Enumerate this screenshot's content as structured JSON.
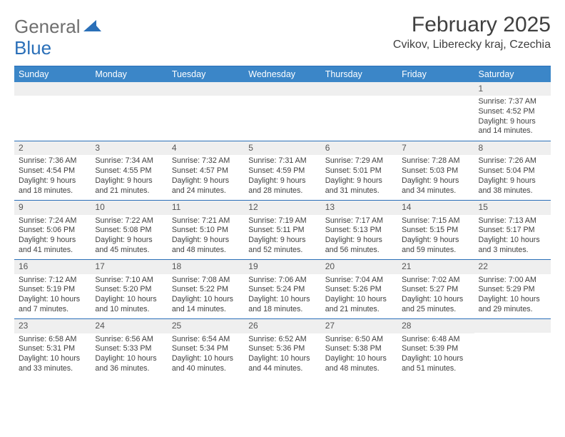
{
  "brand": {
    "part1": "General",
    "part2": "Blue"
  },
  "title": "February 2025",
  "location": "Cvikov, Liberecky kraj, Czechia",
  "colors": {
    "header_bg": "#3b86c8",
    "rule": "#2a6fb8",
    "daynum_bg": "#efefef",
    "text": "#404040"
  },
  "weekdays": [
    "Sunday",
    "Monday",
    "Tuesday",
    "Wednesday",
    "Thursday",
    "Friday",
    "Saturday"
  ],
  "weeks": [
    [
      null,
      null,
      null,
      null,
      null,
      null,
      {
        "n": "1",
        "sr": "Sunrise: 7:37 AM",
        "ss": "Sunset: 4:52 PM",
        "dl": "Daylight: 9 hours and 14 minutes."
      }
    ],
    [
      {
        "n": "2",
        "sr": "Sunrise: 7:36 AM",
        "ss": "Sunset: 4:54 PM",
        "dl": "Daylight: 9 hours and 18 minutes."
      },
      {
        "n": "3",
        "sr": "Sunrise: 7:34 AM",
        "ss": "Sunset: 4:55 PM",
        "dl": "Daylight: 9 hours and 21 minutes."
      },
      {
        "n": "4",
        "sr": "Sunrise: 7:32 AM",
        "ss": "Sunset: 4:57 PM",
        "dl": "Daylight: 9 hours and 24 minutes."
      },
      {
        "n": "5",
        "sr": "Sunrise: 7:31 AM",
        "ss": "Sunset: 4:59 PM",
        "dl": "Daylight: 9 hours and 28 minutes."
      },
      {
        "n": "6",
        "sr": "Sunrise: 7:29 AM",
        "ss": "Sunset: 5:01 PM",
        "dl": "Daylight: 9 hours and 31 minutes."
      },
      {
        "n": "7",
        "sr": "Sunrise: 7:28 AM",
        "ss": "Sunset: 5:03 PM",
        "dl": "Daylight: 9 hours and 34 minutes."
      },
      {
        "n": "8",
        "sr": "Sunrise: 7:26 AM",
        "ss": "Sunset: 5:04 PM",
        "dl": "Daylight: 9 hours and 38 minutes."
      }
    ],
    [
      {
        "n": "9",
        "sr": "Sunrise: 7:24 AM",
        "ss": "Sunset: 5:06 PM",
        "dl": "Daylight: 9 hours and 41 minutes."
      },
      {
        "n": "10",
        "sr": "Sunrise: 7:22 AM",
        "ss": "Sunset: 5:08 PM",
        "dl": "Daylight: 9 hours and 45 minutes."
      },
      {
        "n": "11",
        "sr": "Sunrise: 7:21 AM",
        "ss": "Sunset: 5:10 PM",
        "dl": "Daylight: 9 hours and 48 minutes."
      },
      {
        "n": "12",
        "sr": "Sunrise: 7:19 AM",
        "ss": "Sunset: 5:11 PM",
        "dl": "Daylight: 9 hours and 52 minutes."
      },
      {
        "n": "13",
        "sr": "Sunrise: 7:17 AM",
        "ss": "Sunset: 5:13 PM",
        "dl": "Daylight: 9 hours and 56 minutes."
      },
      {
        "n": "14",
        "sr": "Sunrise: 7:15 AM",
        "ss": "Sunset: 5:15 PM",
        "dl": "Daylight: 9 hours and 59 minutes."
      },
      {
        "n": "15",
        "sr": "Sunrise: 7:13 AM",
        "ss": "Sunset: 5:17 PM",
        "dl": "Daylight: 10 hours and 3 minutes."
      }
    ],
    [
      {
        "n": "16",
        "sr": "Sunrise: 7:12 AM",
        "ss": "Sunset: 5:19 PM",
        "dl": "Daylight: 10 hours and 7 minutes."
      },
      {
        "n": "17",
        "sr": "Sunrise: 7:10 AM",
        "ss": "Sunset: 5:20 PM",
        "dl": "Daylight: 10 hours and 10 minutes."
      },
      {
        "n": "18",
        "sr": "Sunrise: 7:08 AM",
        "ss": "Sunset: 5:22 PM",
        "dl": "Daylight: 10 hours and 14 minutes."
      },
      {
        "n": "19",
        "sr": "Sunrise: 7:06 AM",
        "ss": "Sunset: 5:24 PM",
        "dl": "Daylight: 10 hours and 18 minutes."
      },
      {
        "n": "20",
        "sr": "Sunrise: 7:04 AM",
        "ss": "Sunset: 5:26 PM",
        "dl": "Daylight: 10 hours and 21 minutes."
      },
      {
        "n": "21",
        "sr": "Sunrise: 7:02 AM",
        "ss": "Sunset: 5:27 PM",
        "dl": "Daylight: 10 hours and 25 minutes."
      },
      {
        "n": "22",
        "sr": "Sunrise: 7:00 AM",
        "ss": "Sunset: 5:29 PM",
        "dl": "Daylight: 10 hours and 29 minutes."
      }
    ],
    [
      {
        "n": "23",
        "sr": "Sunrise: 6:58 AM",
        "ss": "Sunset: 5:31 PM",
        "dl": "Daylight: 10 hours and 33 minutes."
      },
      {
        "n": "24",
        "sr": "Sunrise: 6:56 AM",
        "ss": "Sunset: 5:33 PM",
        "dl": "Daylight: 10 hours and 36 minutes."
      },
      {
        "n": "25",
        "sr": "Sunrise: 6:54 AM",
        "ss": "Sunset: 5:34 PM",
        "dl": "Daylight: 10 hours and 40 minutes."
      },
      {
        "n": "26",
        "sr": "Sunrise: 6:52 AM",
        "ss": "Sunset: 5:36 PM",
        "dl": "Daylight: 10 hours and 44 minutes."
      },
      {
        "n": "27",
        "sr": "Sunrise: 6:50 AM",
        "ss": "Sunset: 5:38 PM",
        "dl": "Daylight: 10 hours and 48 minutes."
      },
      {
        "n": "28",
        "sr": "Sunrise: 6:48 AM",
        "ss": "Sunset: 5:39 PM",
        "dl": "Daylight: 10 hours and 51 minutes."
      },
      null
    ]
  ]
}
